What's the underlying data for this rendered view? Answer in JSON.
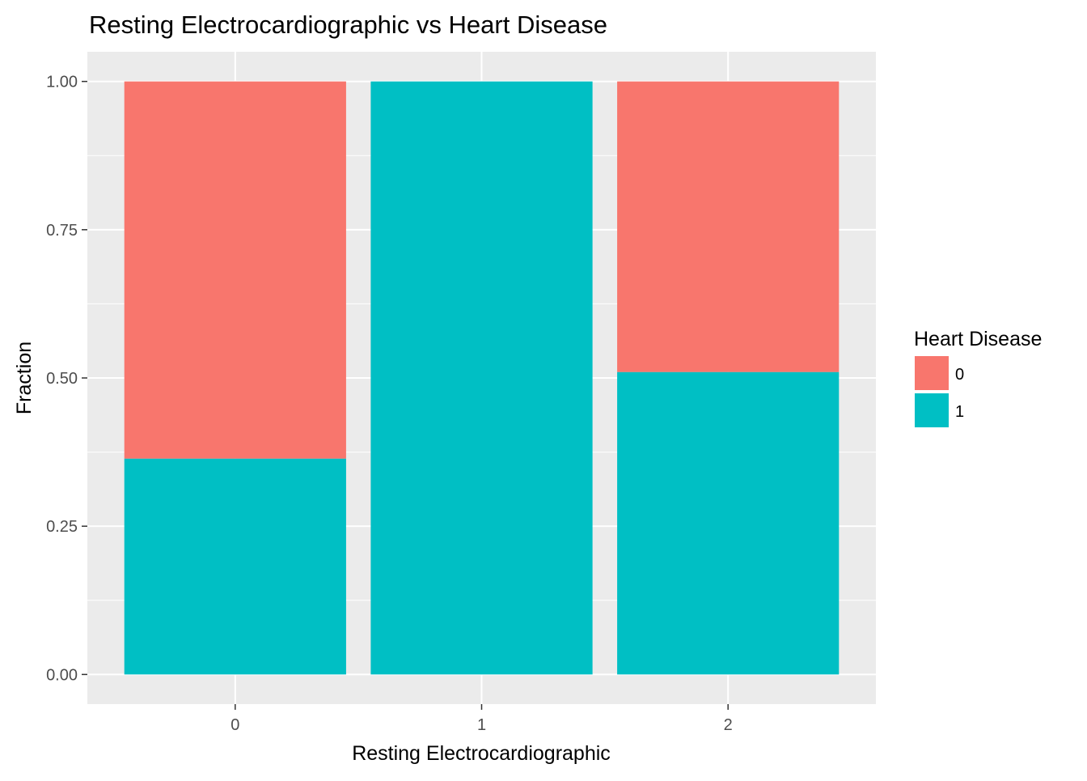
{
  "chart_data": {
    "type": "bar",
    "stacked": true,
    "title": "Resting Electrocardiographic vs Heart Disease",
    "xlabel": "Resting Electrocardiographic",
    "ylabel": "Fraction",
    "categories": [
      "0",
      "1",
      "2"
    ],
    "series": [
      {
        "name": "0",
        "color": "#F8766D",
        "values": [
          0.636,
          0.0,
          0.49
        ]
      },
      {
        "name": "1",
        "color": "#00BFC4",
        "values": [
          0.364,
          1.0,
          0.51
        ]
      }
    ],
    "ylim": [
      -0.05,
      1.05
    ],
    "y_ticks": [
      "0.00",
      "0.25",
      "0.50",
      "0.75",
      "1.00"
    ],
    "grid": true,
    "panel_background": "#EBEBEB",
    "legend": {
      "title": "Heart Disease",
      "placement": "right"
    }
  }
}
